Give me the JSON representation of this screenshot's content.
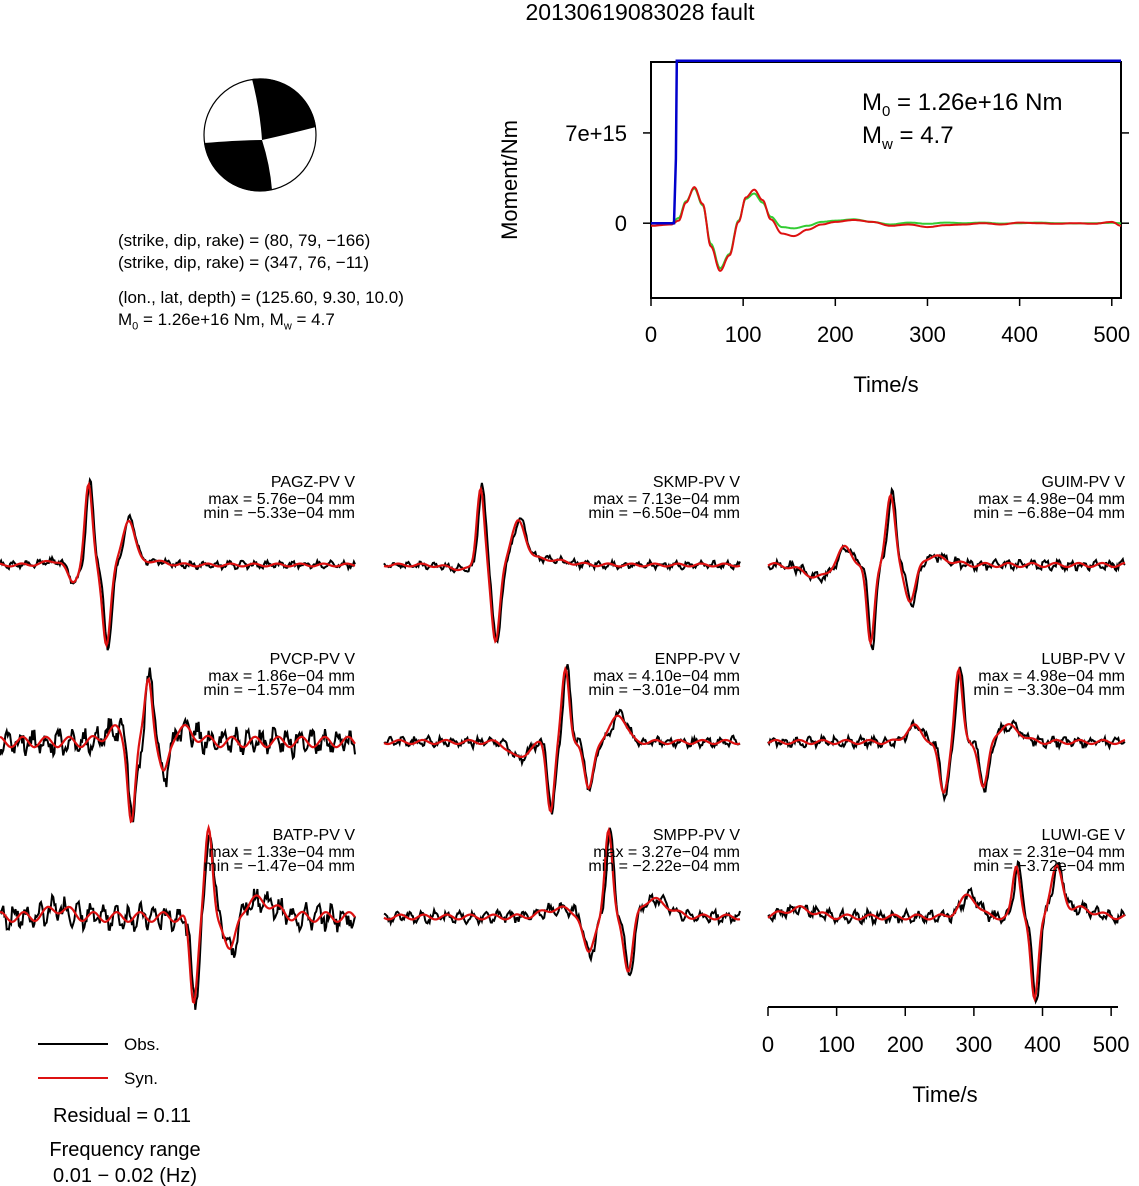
{
  "title": "20130619083028 fault",
  "info": {
    "line1": "(strike, dip, rake) = (80, 79, −166)",
    "line2": "(strike, dip, rake) = (347, 76, −11)",
    "line3": "(lon., lat, depth) = (125.60, 9.30, 10.0)",
    "line4_m0": "M",
    "line4_sub0": "0",
    "line4_mid": " = 1.26e+16 Nm, M",
    "line4_subw": "w",
    "line4_end": " = 4.7"
  },
  "chart_data": [
    {
      "type": "line",
      "name": "moment-rate",
      "xlabel": "Time/s",
      "ylabel": "Moment/Nm",
      "xlim": [
        0,
        510
      ],
      "ylim": [
        -5800000000000000.0,
        1.25e+16
      ],
      "xticks": [
        "0",
        "100",
        "200",
        "300",
        "400",
        "500"
      ],
      "xtick_values": [
        0,
        100,
        200,
        300,
        400,
        500
      ],
      "yticks": [
        "0",
        "7e+15"
      ],
      "ytick_values": [
        0,
        7000000000000000.0
      ],
      "grid": false,
      "annotation_m0": "M",
      "annotation_m0_sub": "0",
      "annotation_m0_val": " = 1.26e+16 Nm",
      "annotation_mw": "M",
      "annotation_mw_sub": "w",
      "annotation_mw_val": " = 4.7",
      "cumulative_moment": {
        "color": "#0000cc",
        "x": [
          0,
          25,
          27,
          28,
          510
        ],
        "y": [
          0,
          0,
          5000000000000000.0,
          1.26e+16,
          1.26e+16
        ]
      },
      "source_curves": [
        {
          "color": "#33cc33",
          "x": [
            0,
            22,
            30,
            38,
            47,
            56,
            65,
            75,
            85,
            95,
            103,
            112,
            121,
            130,
            142,
            155,
            170,
            185,
            200,
            220,
            240,
            260,
            280,
            300,
            320,
            340,
            360,
            380,
            400,
            420,
            440,
            460,
            480,
            500,
            510
          ],
          "y": [
            0,
            0,
            400000000000000.0,
            1700000000000000.0,
            2700000000000000.0,
            1400000000000000.0,
            -1600000000000000.0,
            -3500000000000000.0,
            -2400000000000000.0,
            200000000000000.0,
            1900000000000000.0,
            2300000000000000.0,
            1600000000000000.0,
            500000000000000.0,
            -300000000000000.0,
            -400000000000000.0,
            -200000000000000.0,
            100000000000000.0,
            200000000000000.0,
            300000000000000.0,
            100000000000000.0,
            -100000000000000.0,
            50000000000000.0,
            -50000000000000.0,
            50000000000000.0,
            0,
            50000000000000.0,
            -30000000000000.0,
            0,
            50000000000000.0,
            0,
            -20000000000000.0,
            0,
            30000000000000.0,
            0
          ]
        },
        {
          "color": "#dd1111",
          "x": [
            0,
            22,
            30,
            38,
            47,
            56,
            65,
            75,
            85,
            95,
            103,
            112,
            121,
            130,
            142,
            155,
            170,
            185,
            200,
            220,
            240,
            260,
            280,
            300,
            320,
            340,
            360,
            380,
            400,
            420,
            440,
            460,
            480,
            500,
            510
          ],
          "y": [
            -200000000000000.0,
            -100000000000000.0,
            200000000000000.0,
            1600000000000000.0,
            2800000000000000.0,
            1500000000000000.0,
            -1800000000000000.0,
            -3700000000000000.0,
            -2500000000000000.0,
            100000000000000.0,
            2000000000000000.0,
            2600000000000000.0,
            1800000000000000.0,
            300000000000000.0,
            -800000000000000.0,
            -1000000000000000.0,
            -500000000000000.0,
            -100000000000000.0,
            100000000000000.0,
            250000000000000.0,
            100000000000000.0,
            -200000000000000.0,
            -100000000000000.0,
            -300000000000000.0,
            -150000000000000.0,
            -100000000000000.0,
            0,
            -100000000000000.0,
            50000000000000.0,
            0,
            -50000000000000.0,
            0,
            -50000000000000.0,
            100000000000000.0,
            -200000000000000.0
          ]
        }
      ]
    },
    {
      "type": "line",
      "name": "waveforms",
      "xlabel": "Time/s",
      "xlim": [
        0,
        510
      ],
      "xticks": [
        "0",
        "100",
        "200",
        "300",
        "400",
        "500"
      ],
      "xtick_values": [
        0,
        100,
        200,
        300,
        400,
        500
      ],
      "legend": [
        {
          "label": "Obs.",
          "color": "#000000"
        },
        {
          "label": "Syn.",
          "color": "#dd1111"
        }
      ],
      "residual": "Residual = 0.11",
      "freq_label": "Frequency range",
      "freq_range": "0.01 − 0.02 (Hz)",
      "stations": [
        {
          "name": "PAGZ-PV V",
          "max": "max = 5.76e−04 mm",
          "min": "min = −5.33e−04 mm",
          "peaks": [
            [
              60,
              0.05,
              0.18
            ],
            [
              74,
              -0.25,
              0.07
            ],
            [
              90,
              1.0,
              0.05
            ],
            [
              108,
              -1.0,
              0.055
            ],
            [
              130,
              0.55,
              0.08
            ],
            [
              150,
              0.05,
              0.2
            ]
          ],
          "noise": 0.05,
          "seed": 1
        },
        {
          "name": "SKMP-PV V",
          "max": "max = 7.13e−04 mm",
          "min": "min = −6.50e−04 mm",
          "peaks": [
            [
              465,
              -0.05,
              0.2
            ],
            [
              482,
              1.0,
              0.05
            ],
            [
              497,
              -0.98,
              0.055
            ],
            [
              520,
              0.5,
              0.09
            ],
            [
              540,
              0.08,
              0.3
            ]
          ],
          "noise": 0.05,
          "seed": 2
        },
        {
          "name": "GUIM-PV V",
          "max": "max = 4.98e−04 mm",
          "min": "min = −6.88e−04 mm",
          "peaks": [
            [
              820,
              -0.15,
              0.2
            ],
            [
              845,
              0.25,
              0.1
            ],
            [
              872,
              -1.0,
              0.05
            ],
            [
              892,
              0.85,
              0.06
            ],
            [
              912,
              -0.5,
              0.07
            ],
            [
              935,
              0.1,
              0.2
            ]
          ],
          "noise": 0.07,
          "seed": 3
        },
        {
          "name": "PVCP-PV V",
          "max": "max = 1.86e−04 mm",
          "min": "min = −1.57e−04 mm",
          "peaks": [
            [
              115,
              0.15,
              0.12
            ],
            [
              133,
              -1.0,
              0.05
            ],
            [
              150,
              0.85,
              0.05
            ],
            [
              165,
              -0.45,
              0.06
            ],
            [
              185,
              0.15,
              0.15
            ]
          ],
          "noise": 0.18,
          "seed": 4
        },
        {
          "name": "ENPP-PV V",
          "max": "max = 4.10e−04 mm",
          "min": "min = −3.01e−04 mm",
          "peaks": [
            [
              520,
              -0.2,
              0.12
            ],
            [
              552,
              -0.85,
              0.05
            ],
            [
              567,
              0.9,
              0.05
            ],
            [
              590,
              -0.6,
              0.06
            ],
            [
              620,
              0.35,
              0.1
            ]
          ],
          "noise": 0.07,
          "seed": 5
        },
        {
          "name": "LUBP-PV V",
          "max": "max = 4.98e−04 mm",
          "min": "min = −3.30e−04 mm",
          "peaks": [
            [
              915,
              0.2,
              0.1
            ],
            [
              945,
              -0.65,
              0.06
            ],
            [
              960,
              0.9,
              0.05
            ],
            [
              985,
              -0.6,
              0.06
            ],
            [
              1010,
              0.2,
              0.15
            ]
          ],
          "noise": 0.07,
          "seed": 6
        },
        {
          "name": "BATP-PV V",
          "max": "max = 1.33e−04 mm",
          "min": "min = −1.47e−04 mm",
          "peaks": [
            [
              60,
              0.1,
              0.15
            ],
            [
              195,
              -1.0,
              0.05
            ],
            [
              210,
              1.0,
              0.05
            ],
            [
              232,
              -0.45,
              0.07
            ],
            [
              260,
              0.2,
              0.2
            ]
          ],
          "noise": 0.16,
          "seed": 7
        },
        {
          "name": "SMPP-PV V",
          "max": "max = 3.27e−04 mm",
          "min": "min = −2.22e−04 mm",
          "peaks": [
            [
              560,
              0.1,
              0.2
            ],
            [
              590,
              -0.45,
              0.07
            ],
            [
              610,
              1.0,
              0.05
            ],
            [
              630,
              -0.7,
              0.06
            ],
            [
              655,
              0.2,
              0.2
            ]
          ],
          "noise": 0.08,
          "seed": 8
        },
        {
          "name": "LUWI-GE V",
          "max": "max = 2.31e−04 mm",
          "min": "min = −3.72e−04 mm",
          "peaks": [
            [
              800,
              0.1,
              0.2
            ],
            [
              970,
              0.25,
              0.12
            ],
            [
              1018,
              0.6,
              0.05
            ],
            [
              1036,
              -1.0,
              0.05
            ],
            [
              1058,
              0.55,
              0.08
            ],
            [
              1080,
              0.1,
              0.2
            ]
          ],
          "noise": 0.08,
          "seed": 9
        }
      ]
    }
  ]
}
